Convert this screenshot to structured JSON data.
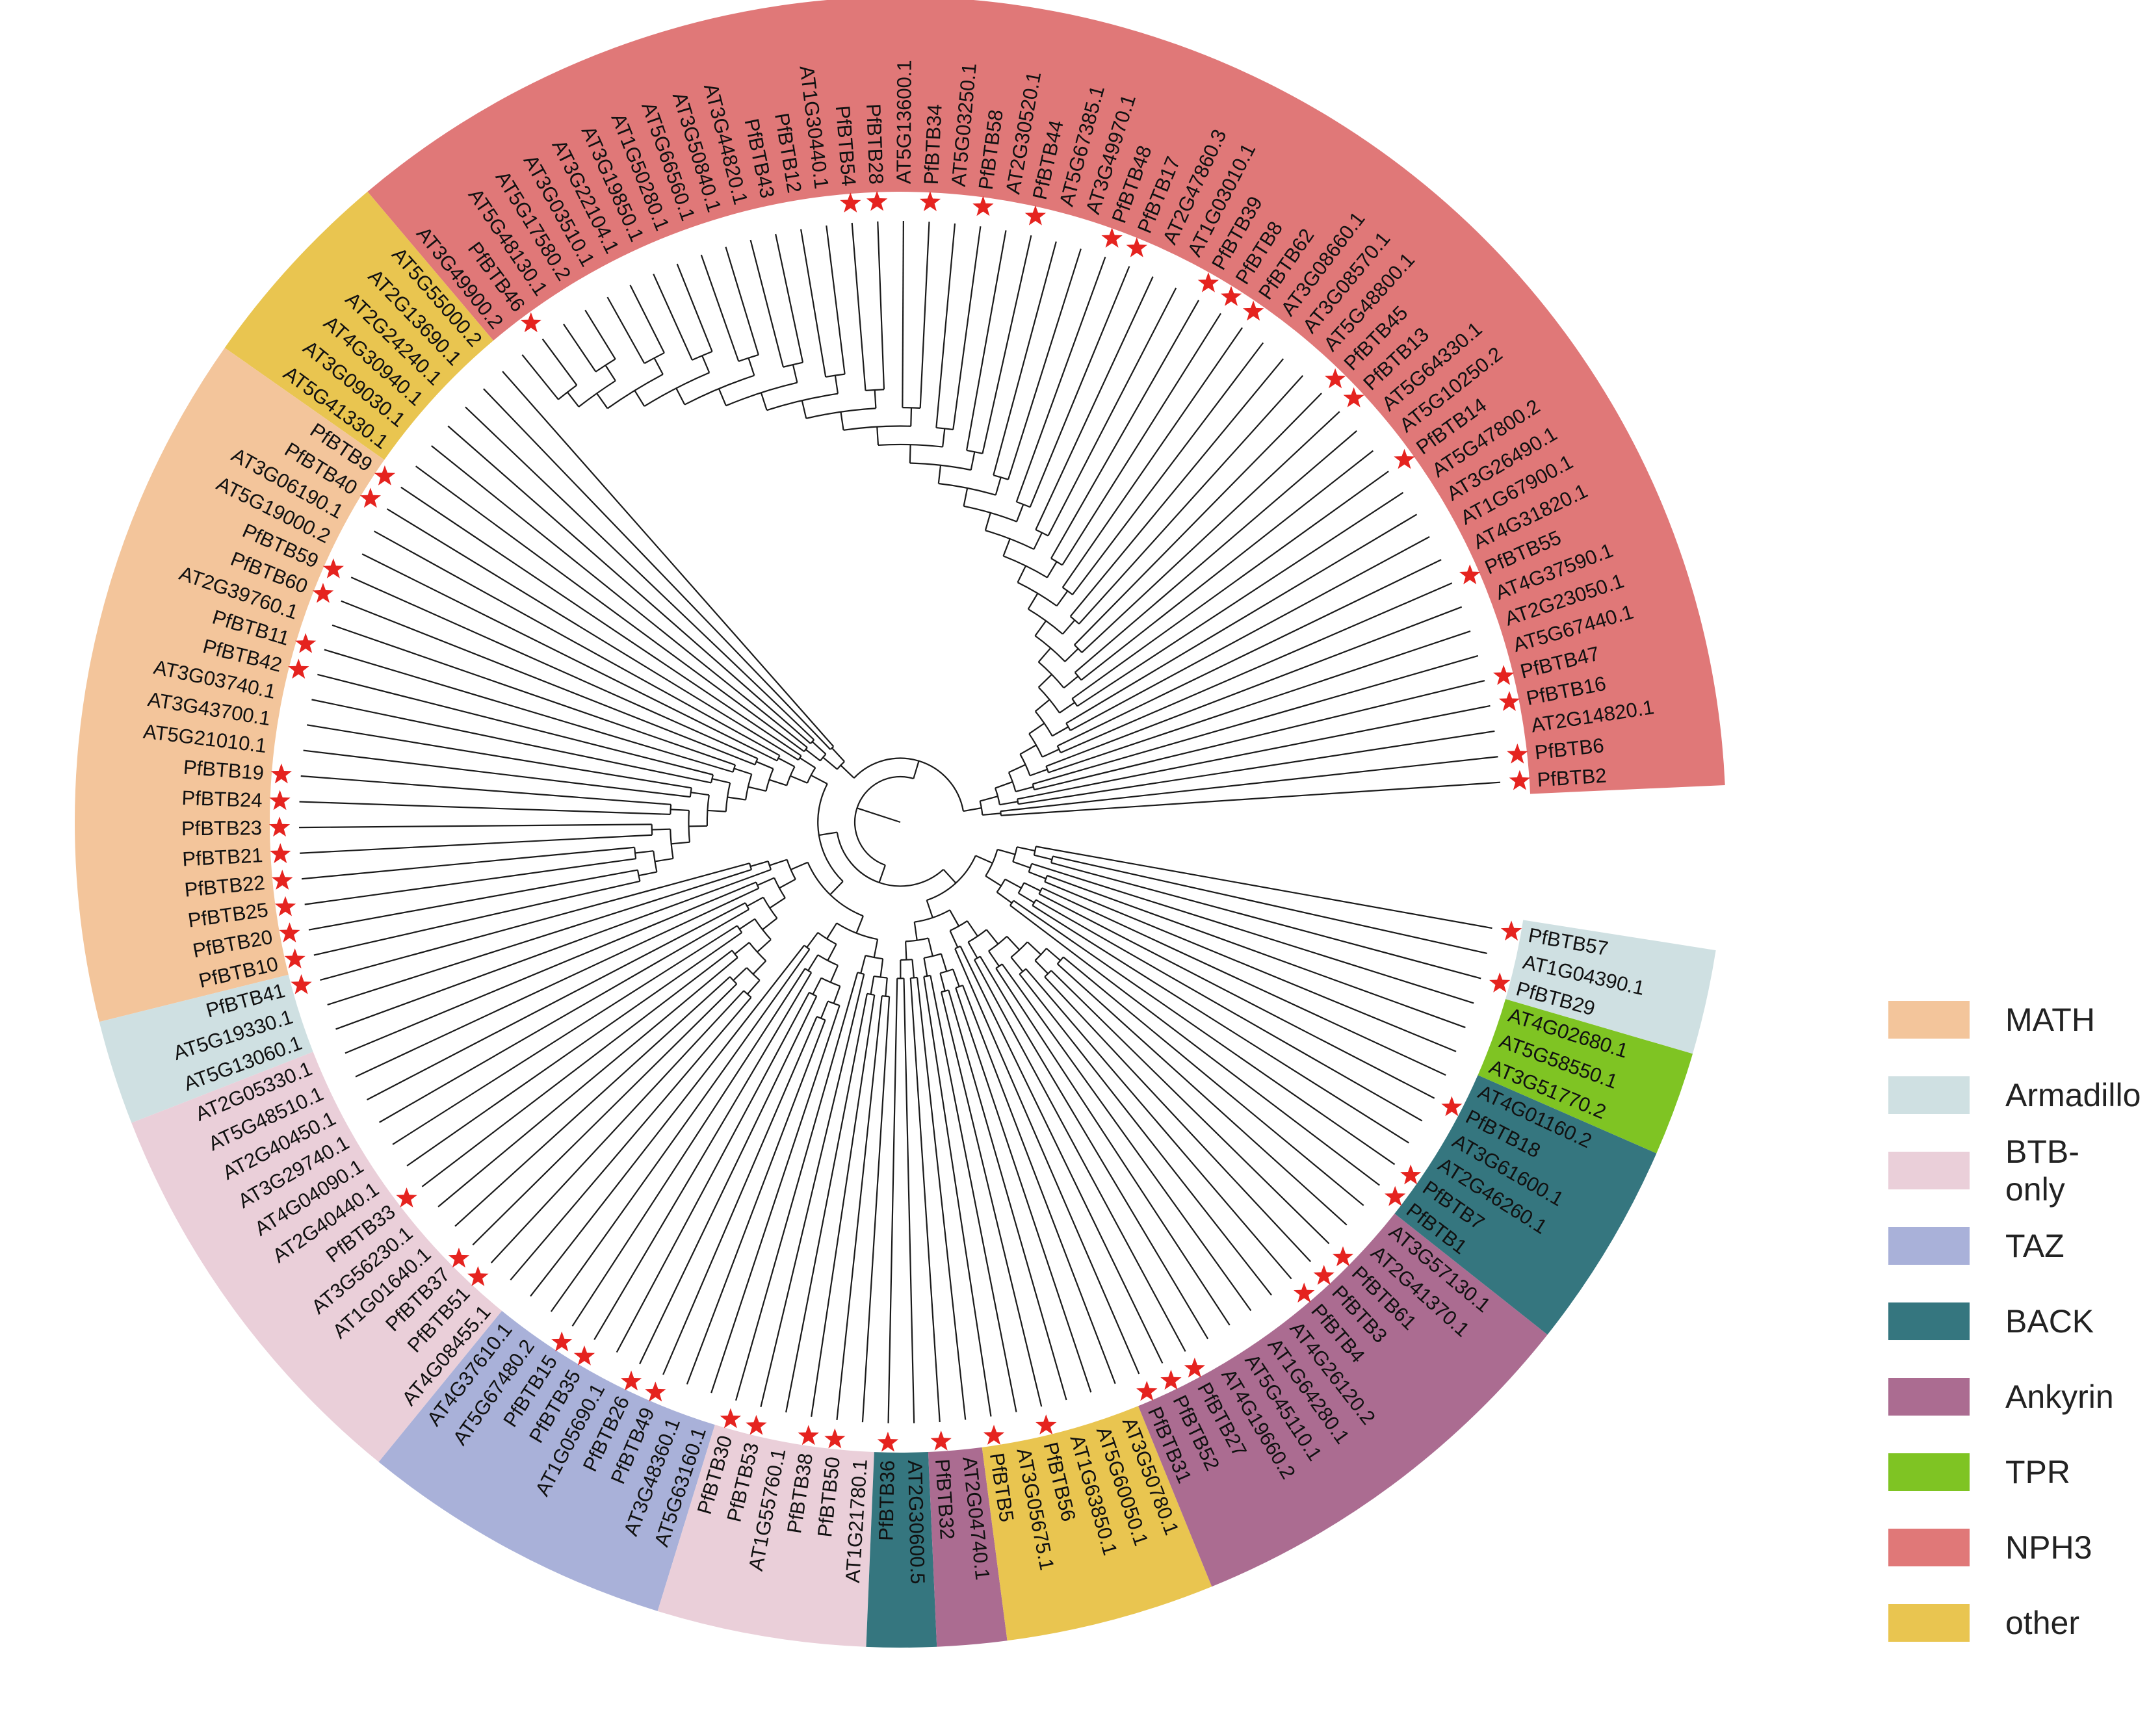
{
  "figure": {
    "description_free": true
  },
  "legend": [
    {
      "key": "MATH",
      "label": "MATH",
      "color": "#F3C59B"
    },
    {
      "key": "Armadillo",
      "label": "Armadillo",
      "color": "#CFE0E2"
    },
    {
      "key": "BTB-only",
      "label": "BTB-only",
      "color": "#EACFD9"
    },
    {
      "key": "TAZ",
      "label": "TAZ",
      "color": "#A9B1D9"
    },
    {
      "key": "BACK",
      "label": "BACK",
      "color": "#35767F"
    },
    {
      "key": "Ankyrin",
      "label": "Ankyrin",
      "color": "#AB6C91"
    },
    {
      "key": "TPR",
      "label": "TPR",
      "color": "#7FC423"
    },
    {
      "key": "NPH3",
      "label": "NPH3",
      "color": "#E07878"
    },
    {
      "key": "other",
      "label": "other",
      "color": "#E9C550"
    }
  ],
  "marker": {
    "star_icon": "star-icon",
    "star_color": "#E5231F"
  },
  "groups": [
    {
      "clade": "NPH3",
      "leaves": [
        {
          "label": "PfBTB2",
          "star": true
        },
        {
          "label": "PfBTB6",
          "star": true
        },
        {
          "label": "AT2G14820.1",
          "star": false
        },
        {
          "label": "PfBTB16",
          "star": true
        },
        {
          "label": "PfBTB47",
          "star": true
        },
        {
          "label": "AT5G67440.1",
          "star": false
        },
        {
          "label": "AT2G23050.1",
          "star": false
        },
        {
          "label": "AT4G37590.1",
          "star": false
        },
        {
          "label": "PfBTB55",
          "star": true
        },
        {
          "label": "AT4G31820.1",
          "star": false
        },
        {
          "label": "AT1G67900.1",
          "star": false
        },
        {
          "label": "AT3G26490.1",
          "star": false
        },
        {
          "label": "AT5G47800.2",
          "star": false
        },
        {
          "label": "PfBTB14",
          "star": true
        },
        {
          "label": "AT5G10250.2",
          "star": false
        },
        {
          "label": "AT5G64330.1",
          "star": false
        },
        {
          "label": "PfBTB13",
          "star": true
        },
        {
          "label": "PfBTB45",
          "star": true
        },
        {
          "label": "AT5G48800.1",
          "star": false
        },
        {
          "label": "AT3G08570.1",
          "star": false
        },
        {
          "label": "AT3G08660.1",
          "star": false
        },
        {
          "label": "PfBTB62",
          "star": true
        },
        {
          "label": "PfBTB8",
          "star": true
        },
        {
          "label": "PfBTB39",
          "star": true
        },
        {
          "label": "AT1G03010.1",
          "star": false
        },
        {
          "label": "AT2G47860.3",
          "star": false
        },
        {
          "label": "PfBTB17",
          "star": true
        },
        {
          "label": "PfBTB48",
          "star": true
        },
        {
          "label": "AT3G49970.1",
          "star": false
        },
        {
          "label": "AT5G67385.1",
          "star": false
        },
        {
          "label": "PfBTB44",
          "star": true
        },
        {
          "label": "AT2G30520.1",
          "star": false
        },
        {
          "label": "PfBTB58",
          "star": true
        },
        {
          "label": "AT5G03250.1",
          "star": false
        },
        {
          "label": "PfBTB34",
          "star": true
        },
        {
          "label": "AT5G13600.1",
          "star": false
        },
        {
          "label": "PfBTB28",
          "star": true
        },
        {
          "label": "PfBTB54",
          "star": true
        },
        {
          "label": "AT1G30440.1",
          "star": false
        },
        {
          "label": "PfBTB12",
          "star": false
        },
        {
          "label": "PfBTB43",
          "star": false
        },
        {
          "label": "AT3G44820.1",
          "star": false
        },
        {
          "label": "AT3G50840.1",
          "star": false
        },
        {
          "label": "AT5G66560.1",
          "star": false
        },
        {
          "label": "AT1G50280.1",
          "star": false
        },
        {
          "label": "AT3G19850.1",
          "star": false
        },
        {
          "label": "AT3G22104.1",
          "star": false
        },
        {
          "label": "AT3G03510.1",
          "star": false
        },
        {
          "label": "AT5G17580.2",
          "star": false
        },
        {
          "label": "AT5G48130.1",
          "star": false
        },
        {
          "label": "PfBTB46",
          "star": true
        },
        {
          "label": "AT3G49900.2",
          "star": false
        }
      ]
    },
    {
      "clade": "other",
      "leaves": [
        {
          "label": "AT5G55000.2",
          "star": false
        },
        {
          "label": "AT2G13690.1",
          "star": false
        },
        {
          "label": "AT2G24240.1",
          "star": false
        },
        {
          "label": "AT4G30940.1",
          "star": false
        },
        {
          "label": "AT3G09030.1",
          "star": false
        },
        {
          "label": "AT5G41330.1",
          "star": false
        }
      ]
    },
    {
      "clade": "MATH",
      "leaves": [
        {
          "label": "PfBTB9",
          "star": true
        },
        {
          "label": "PfBTB40",
          "star": true
        },
        {
          "label": "AT3G06190.1",
          "star": false
        },
        {
          "label": "AT5G19000.2",
          "star": false
        },
        {
          "label": "PfBTB59",
          "star": true
        },
        {
          "label": "PfBTB60",
          "star": true
        },
        {
          "label": "AT2G39760.1",
          "star": false
        },
        {
          "label": "PfBTB11",
          "star": true
        },
        {
          "label": "PfBTB42",
          "star": true
        },
        {
          "label": "AT3G03740.1",
          "star": false
        },
        {
          "label": "AT3G43700.1",
          "star": false
        },
        {
          "label": "AT5G21010.1",
          "star": false
        },
        {
          "label": "PfBTB19",
          "star": true
        },
        {
          "label": "PfBTB24",
          "star": true
        },
        {
          "label": "PfBTB23",
          "star": true
        },
        {
          "label": "PfBTB21",
          "star": true
        },
        {
          "label": "PfBTB22",
          "star": true
        },
        {
          "label": "PfBTB25",
          "star": true
        },
        {
          "label": "PfBTB20",
          "star": true
        },
        {
          "label": "PfBTB10",
          "star": true
        }
      ]
    },
    {
      "clade": "Armadillo",
      "leaves": [
        {
          "label": "PfBTB41",
          "star": true
        },
        {
          "label": "AT5G19330.1",
          "star": false
        },
        {
          "label": "AT5G13060.1",
          "star": false
        }
      ]
    },
    {
      "clade": "BTB-only",
      "leaves": [
        {
          "label": "AT2G05330.1",
          "star": false
        },
        {
          "label": "AT5G48510.1",
          "star": false
        },
        {
          "label": "AT2G40450.1",
          "star": false
        },
        {
          "label": "AT3G29740.1",
          "star": false
        },
        {
          "label": "AT4G04090.1",
          "star": false
        },
        {
          "label": "AT2G40440.1",
          "star": false
        },
        {
          "label": "PfBTB33",
          "star": true
        },
        {
          "label": "AT3G56230.1",
          "star": false
        },
        {
          "label": "AT1G01640.1",
          "star": false
        },
        {
          "label": "PfBTB37",
          "star": true
        },
        {
          "label": "PfBTB51",
          "star": true
        },
        {
          "label": "AT4G08455.1",
          "star": false
        }
      ]
    },
    {
      "clade": "TAZ",
      "leaves": [
        {
          "label": "AT4G37610.1",
          "star": false
        },
        {
          "label": "AT5G67480.2",
          "star": false
        },
        {
          "label": "PfBTB15",
          "star": true
        },
        {
          "label": "PfBTB35",
          "star": true
        },
        {
          "label": "AT1G05690.1",
          "star": false
        },
        {
          "label": "PfBTB26",
          "star": true
        },
        {
          "label": "PfBTB49",
          "star": true
        },
        {
          "label": "AT3G48360.1",
          "star": false
        },
        {
          "label": "AT5G63160.1",
          "star": false
        }
      ]
    },
    {
      "clade": "BTB-only",
      "leaves": [
        {
          "label": "PfBTB30",
          "star": true
        },
        {
          "label": "PfBTB53",
          "star": true
        },
        {
          "label": "AT1G55760.1",
          "star": false
        },
        {
          "label": "PfBTB38",
          "star": true
        },
        {
          "label": "PfBTB50",
          "star": true
        },
        {
          "label": "AT1G21780.1",
          "star": false
        }
      ]
    },
    {
      "clade": "BACK",
      "leaves": [
        {
          "label": "PfBTB36",
          "star": true
        },
        {
          "label": "AT2G30600.5",
          "star": false
        }
      ]
    },
    {
      "clade": "Ankyrin",
      "leaves": [
        {
          "label": "PfBTB32",
          "star": true
        },
        {
          "label": "AT2G04740.1",
          "star": false
        }
      ]
    },
    {
      "clade": "other",
      "leaves": [
        {
          "label": "PfBTB5",
          "star": true
        },
        {
          "label": "AT3G05675.1",
          "star": false
        },
        {
          "label": "PfBTB56",
          "star": true
        },
        {
          "label": "AT1G63850.1",
          "star": false
        },
        {
          "label": "AT5G60050.1",
          "star": false
        },
        {
          "label": "AT3G50780.1",
          "star": false
        }
      ]
    },
    {
      "clade": "Ankyrin",
      "leaves": [
        {
          "label": "PfBTB31",
          "star": true
        },
        {
          "label": "PfBTB52",
          "star": true
        },
        {
          "label": "PfBTB27",
          "star": true
        },
        {
          "label": "AT4G19660.2",
          "star": false
        },
        {
          "label": "AT5G45110.1",
          "star": false
        },
        {
          "label": "AT1G64280.1",
          "star": false
        },
        {
          "label": "AT4G26120.2",
          "star": false
        },
        {
          "label": "PfBTB4",
          "star": true
        },
        {
          "label": "PfBTB3",
          "star": true
        },
        {
          "label": "PfBTB61",
          "star": true
        },
        {
          "label": "AT2G41370.1",
          "star": false
        },
        {
          "label": "AT3G57130.1",
          "star": false
        }
      ]
    },
    {
      "clade": "BACK",
      "leaves": [
        {
          "label": "PfBTB1",
          "star": true
        },
        {
          "label": "PfBTB7",
          "star": true
        },
        {
          "label": "AT2G46260.1",
          "star": false
        },
        {
          "label": "AT3G61600.1",
          "star": false
        },
        {
          "label": "PfBTB18",
          "star": true
        },
        {
          "label": "AT4G01160.2",
          "star": false
        }
      ]
    },
    {
      "clade": "TPR",
      "leaves": [
        {
          "label": "AT3G51770.2",
          "star": false
        },
        {
          "label": "AT5G58550.1",
          "star": false
        },
        {
          "label": "AT4G02680.1",
          "star": false
        }
      ]
    },
    {
      "clade": "Armadillo",
      "leaves": [
        {
          "label": "PfBTB29",
          "star": true
        },
        {
          "label": "AT1G04390.1",
          "star": false
        },
        {
          "label": "PfBTB57",
          "star": true
        }
      ]
    }
  ]
}
